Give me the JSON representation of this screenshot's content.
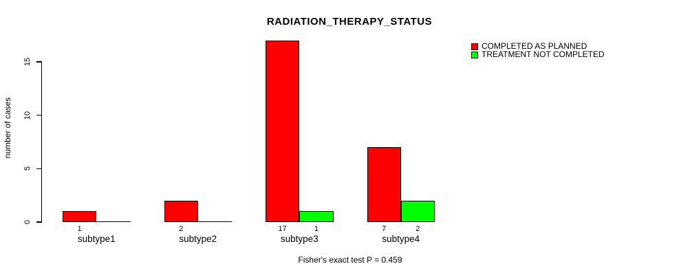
{
  "chart_data": {
    "type": "bar",
    "title": "RADIATION_THERAPY_STATUS",
    "ylabel": "number of cases",
    "xlabel": "",
    "categories": [
      "subtype1",
      "subtype2",
      "subtype3",
      "subtype4"
    ],
    "series": [
      {
        "name": "COMPLETED AS PLANNED",
        "color": "#ff0000",
        "values": [
          1,
          2,
          17,
          7
        ]
      },
      {
        "name": "TREATMENT NOT COMPLETED",
        "color": "#00ff00",
        "values": [
          0,
          0,
          1,
          2
        ]
      }
    ],
    "yticks": [
      0,
      5,
      10,
      15
    ],
    "ylim": [
      0,
      17
    ],
    "grid": false,
    "legend_position": "top-right",
    "bar_border_color": "#000000",
    "axis_color": "#000000",
    "background_color": "#ffffff",
    "annotation": "Fisher's exact test P = 0.459",
    "value_label_rule": "shown under each bar when value > 0"
  }
}
